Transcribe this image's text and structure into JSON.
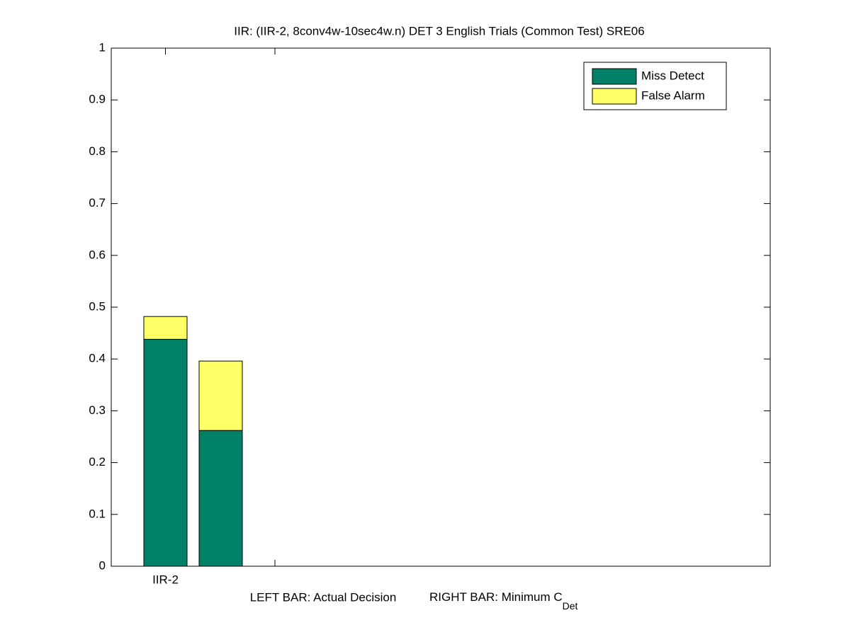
{
  "chart_data": {
    "type": "stacked_bar",
    "title": "IIR: (IIR-2, 8conv4w-10sec4w.n) DET 3 English Trials (Common Test) SRE06",
    "categories": [
      "IIR-2",
      null
    ],
    "series": [
      {
        "name": "Miss Detect",
        "color": "#008066",
        "values": [
          0.438,
          0.262
        ]
      },
      {
        "name": "False Alarm",
        "color": "#ffff66",
        "values": [
          0.044,
          0.134
        ]
      }
    ],
    "xlabel": {
      "left": "LEFT BAR: Actual Decision",
      "right": "RIGHT BAR: Minimum C",
      "subscript": "Det"
    },
    "ylim": [
      0,
      1
    ],
    "yticks": [
      0,
      0.1,
      0.2,
      0.3,
      0.4,
      0.5,
      0.6,
      0.7,
      0.8,
      0.9,
      1
    ],
    "legend": "upper right"
  }
}
